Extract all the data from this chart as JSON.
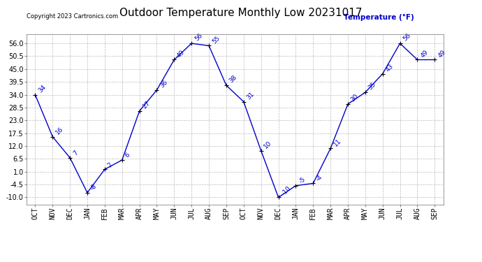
{
  "title": "Outdoor Temperature Monthly Low 20231017",
  "copyright": "Copyright 2023 Cartronics.com",
  "legend_label": "Temperature (°F)",
  "x_labels": [
    "OCT",
    "NOV",
    "DEC",
    "JAN",
    "FEB",
    "MAR",
    "APR",
    "MAY",
    "JUN",
    "JUL",
    "AUG",
    "SEP",
    "OCT",
    "NOV",
    "DEC",
    "JAN",
    "FEB",
    "MAR",
    "APR",
    "MAY",
    "JUN",
    "JUL",
    "AUG",
    "SEP"
  ],
  "y_values": [
    34,
    16,
    7,
    -8,
    2,
    6,
    27,
    36,
    49,
    56,
    55,
    38,
    31,
    10,
    -10,
    -5,
    -4,
    11,
    30,
    35,
    43,
    56,
    49,
    49
  ],
  "ylim": [
    -13.0,
    60.0
  ],
  "yticks": [
    -10.0,
    -4.5,
    1.0,
    6.5,
    12.0,
    17.5,
    23.0,
    28.5,
    34.0,
    39.5,
    45.0,
    50.5,
    56.0
  ],
  "ytick_labels": [
    "-10.0",
    "-4.5",
    "1.0",
    "6.5",
    "12.0",
    "17.5",
    "23.0",
    "28.5",
    "34.0",
    "39.5",
    "45.0",
    "50.5",
    "56.0"
  ],
  "line_color": "#0000cc",
  "marker_color": "#000000",
  "grid_color": "#bbbbbb",
  "bg_color": "#ffffff",
  "title_fontsize": 11,
  "tick_fontsize": 7,
  "annot_fontsize": 6.5,
  "copyright_fontsize": 6,
  "legend_fontsize": 7.5
}
